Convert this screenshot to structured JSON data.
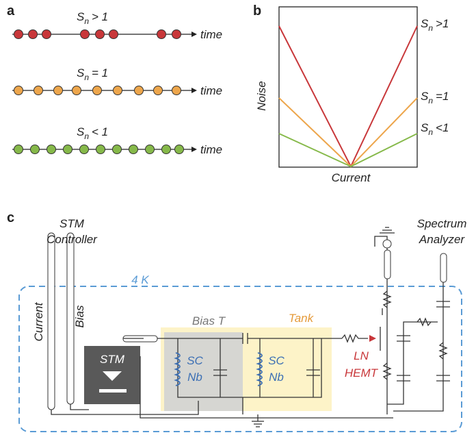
{
  "panel_a": {
    "label": "a",
    "rows": [
      {
        "symbol": "S",
        "subscript": "n",
        "relation": "> 1",
        "axis": "time"
      },
      {
        "symbol": "S",
        "subscript": "n",
        "relation": "= 1",
        "axis": "time"
      },
      {
        "symbol": "S",
        "subscript": "n",
        "relation": "< 1",
        "axis": "time"
      }
    ]
  },
  "panel_b": {
    "label": "b",
    "y_label": "Noise",
    "x_label": "Current",
    "curves": [
      {
        "symbol": "S",
        "subscript": "n",
        "relation": ">1"
      },
      {
        "symbol": "S",
        "subscript": "n",
        "relation": "=1"
      },
      {
        "symbol": "S",
        "subscript": "n",
        "relation": "<1"
      }
    ]
  },
  "panel_c": {
    "label": "c",
    "stm_controller": [
      "STM",
      "Controller"
    ],
    "current_line": "Current",
    "bias_line": "Bias",
    "temperature": "4 K",
    "stm": "STM",
    "bias_t": "Bias T",
    "tank": "Tank",
    "coils": [
      [
        "SC",
        "Nb"
      ],
      [
        "SC",
        "Nb"
      ]
    ],
    "amplifier": [
      "LN",
      "HEMT"
    ],
    "spectrum_analyzer": [
      "Spectrum",
      "Analyzer"
    ]
  }
}
